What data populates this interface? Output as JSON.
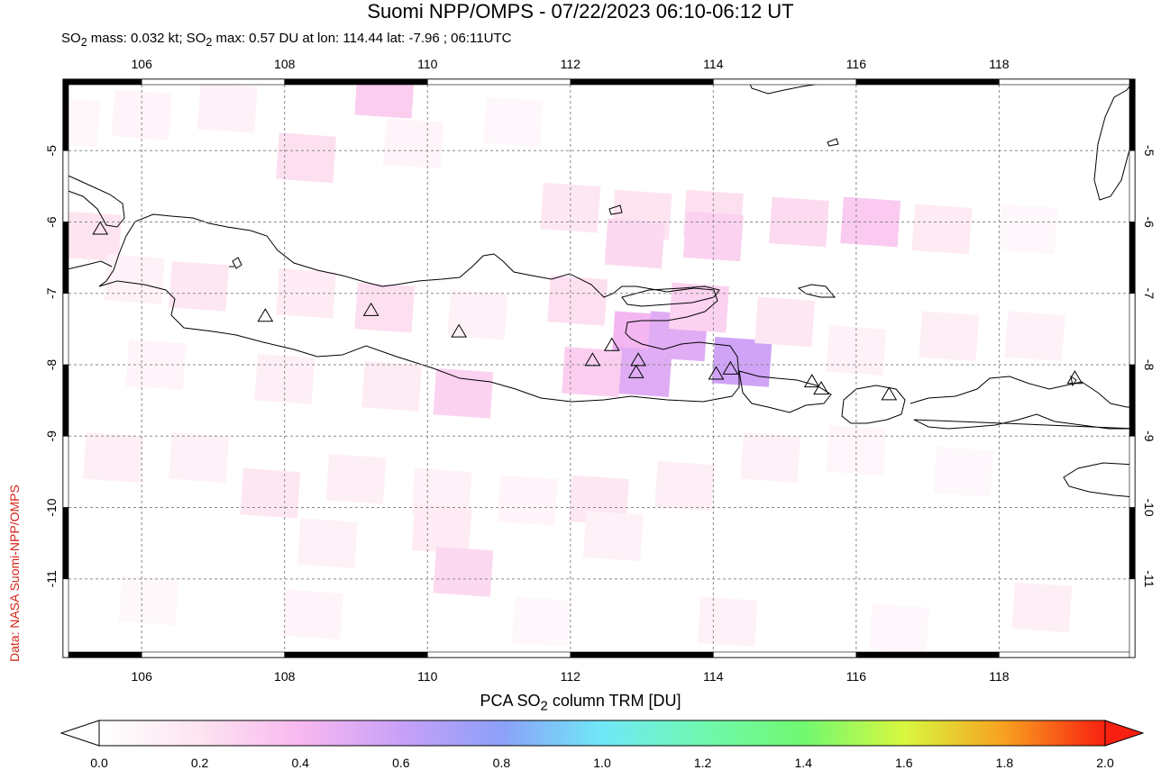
{
  "title": "Suomi NPP/OMPS - 07/22/2023 06:10-06:12 UT",
  "subtitle": {
    "prefix": "SO",
    "sub": "2",
    "mid": " mass: 0.032 kt; SO",
    "sub2": "2",
    "rest": " max: 0.57 DU at lon: 114.44 lat: -7.96 ; 06:11UTC"
  },
  "credit": "Data: NASA Suomi-NPP/OMPS",
  "colorbar": {
    "label_prefix": "PCA SO",
    "label_sub": "2",
    "label_rest": " column TRM [DU]",
    "ticks": [
      "0.0",
      "0.2",
      "0.4",
      "0.6",
      "0.8",
      "1.0",
      "1.2",
      "1.4",
      "1.6",
      "1.8",
      "2.0"
    ],
    "range": [
      0.0,
      2.0
    ],
    "colors": [
      "#ffffff",
      "#fde4f0",
      "#f8b8f0",
      "#c8a0f8",
      "#8ca0f8",
      "#70e8f8",
      "#70f8b0",
      "#70f870",
      "#d8f840",
      "#f8a020",
      "#f82010"
    ]
  },
  "map": {
    "lon_range": [
      104.9,
      119.9
    ],
    "lat_range": [
      -12.1,
      -4.0
    ],
    "lon_ticks": [
      "106",
      "108",
      "110",
      "112",
      "114",
      "116",
      "118"
    ],
    "lon_tick_values": [
      106,
      108,
      110,
      112,
      114,
      116,
      118
    ],
    "lat_ticks": [
      "-5",
      "-6",
      "-7",
      "-8",
      "-9",
      "-10",
      "-11"
    ],
    "lat_tick_values": [
      -5,
      -6,
      -7,
      -8,
      -9,
      -10,
      -11
    ],
    "volcanoes": [
      {
        "lon": 105.42,
        "lat": -6.1
      },
      {
        "lon": 107.73,
        "lat": -7.32
      },
      {
        "lon": 109.21,
        "lat": -7.24
      },
      {
        "lon": 110.44,
        "lat": -7.54
      },
      {
        "lon": 112.31,
        "lat": -7.94
      },
      {
        "lon": 112.58,
        "lat": -7.73
      },
      {
        "lon": 112.95,
        "lat": -7.94
      },
      {
        "lon": 112.92,
        "lat": -8.11
      },
      {
        "lon": 114.04,
        "lat": -8.13
      },
      {
        "lon": 114.24,
        "lat": -8.06
      },
      {
        "lon": 115.38,
        "lat": -8.24
      },
      {
        "lon": 115.51,
        "lat": -8.34
      },
      {
        "lon": 116.46,
        "lat": -8.42
      },
      {
        "lon": 119.06,
        "lat": -8.19
      }
    ],
    "so2_cells": [
      {
        "lon": 105.0,
        "lat": -4.6,
        "v": 0.05
      },
      {
        "lon": 106.0,
        "lat": -4.5,
        "v": 0.08
      },
      {
        "lon": 107.2,
        "lat": -4.4,
        "v": 0.1
      },
      {
        "lon": 108.3,
        "lat": -5.1,
        "v": 0.22
      },
      {
        "lon": 109.4,
        "lat": -4.2,
        "v": 0.3
      },
      {
        "lon": 109.8,
        "lat": -4.9,
        "v": 0.08
      },
      {
        "lon": 111.2,
        "lat": -4.6,
        "v": 0.06
      },
      {
        "lon": 112.0,
        "lat": -5.8,
        "v": 0.18
      },
      {
        "lon": 113.0,
        "lat": -5.9,
        "v": 0.2
      },
      {
        "lon": 114.0,
        "lat": -5.9,
        "v": 0.22
      },
      {
        "lon": 115.2,
        "lat": -6.0,
        "v": 0.24
      },
      {
        "lon": 116.2,
        "lat": -6.0,
        "v": 0.32
      },
      {
        "lon": 117.2,
        "lat": -6.1,
        "v": 0.15
      },
      {
        "lon": 118.4,
        "lat": -6.1,
        "v": 0.06
      },
      {
        "lon": 112.9,
        "lat": -6.3,
        "v": 0.25
      },
      {
        "lon": 114.0,
        "lat": -6.2,
        "v": 0.28
      },
      {
        "lon": 105.3,
        "lat": -6.2,
        "v": 0.2
      },
      {
        "lon": 105.9,
        "lat": -6.8,
        "v": 0.1
      },
      {
        "lon": 106.8,
        "lat": -6.9,
        "v": 0.18
      },
      {
        "lon": 108.3,
        "lat": -7.0,
        "v": 0.15
      },
      {
        "lon": 109.4,
        "lat": -7.2,
        "v": 0.22
      },
      {
        "lon": 110.7,
        "lat": -7.3,
        "v": 0.1
      },
      {
        "lon": 112.1,
        "lat": -7.1,
        "v": 0.22
      },
      {
        "lon": 113.0,
        "lat": -7.6,
        "v": 0.42
      },
      {
        "lon": 113.5,
        "lat": -7.6,
        "v": 0.5
      },
      {
        "lon": 113.0,
        "lat": -8.1,
        "v": 0.5
      },
      {
        "lon": 112.3,
        "lat": -8.1,
        "v": 0.3
      },
      {
        "lon": 114.4,
        "lat": -7.96,
        "v": 0.57
      },
      {
        "lon": 113.8,
        "lat": -7.2,
        "v": 0.28
      },
      {
        "lon": 115.0,
        "lat": -7.4,
        "v": 0.18
      },
      {
        "lon": 116.0,
        "lat": -7.8,
        "v": 0.1
      },
      {
        "lon": 117.3,
        "lat": -7.6,
        "v": 0.12
      },
      {
        "lon": 118.5,
        "lat": -7.6,
        "v": 0.1
      },
      {
        "lon": 110.5,
        "lat": -8.4,
        "v": 0.28
      },
      {
        "lon": 109.5,
        "lat": -8.3,
        "v": 0.14
      },
      {
        "lon": 108.0,
        "lat": -8.2,
        "v": 0.12
      },
      {
        "lon": 106.2,
        "lat": -8.0,
        "v": 0.08
      },
      {
        "lon": 105.6,
        "lat": -9.3,
        "v": 0.12
      },
      {
        "lon": 106.8,
        "lat": -9.3,
        "v": 0.1
      },
      {
        "lon": 107.8,
        "lat": -9.8,
        "v": 0.18
      },
      {
        "lon": 109.0,
        "lat": -9.6,
        "v": 0.12
      },
      {
        "lon": 110.2,
        "lat": -9.8,
        "v": 0.1
      },
      {
        "lon": 111.4,
        "lat": -9.9,
        "v": 0.08
      },
      {
        "lon": 112.4,
        "lat": -9.9,
        "v": 0.18
      },
      {
        "lon": 113.6,
        "lat": -9.7,
        "v": 0.12
      },
      {
        "lon": 114.8,
        "lat": -9.3,
        "v": 0.1
      },
      {
        "lon": 116.0,
        "lat": -9.2,
        "v": 0.07
      },
      {
        "lon": 117.5,
        "lat": -9.5,
        "v": 0.06
      },
      {
        "lon": 110.2,
        "lat": -10.3,
        "v": 0.15
      },
      {
        "lon": 108.6,
        "lat": -10.5,
        "v": 0.1
      },
      {
        "lon": 112.6,
        "lat": -10.4,
        "v": 0.1
      },
      {
        "lon": 110.5,
        "lat": -10.9,
        "v": 0.25
      },
      {
        "lon": 106.1,
        "lat": -11.3,
        "v": 0.05
      },
      {
        "lon": 108.4,
        "lat": -11.5,
        "v": 0.08
      },
      {
        "lon": 111.6,
        "lat": -11.6,
        "v": 0.06
      },
      {
        "lon": 114.2,
        "lat": -11.6,
        "v": 0.1
      },
      {
        "lon": 116.6,
        "lat": -11.7,
        "v": 0.06
      },
      {
        "lon": 118.6,
        "lat": -11.4,
        "v": 0.12
      }
    ]
  }
}
